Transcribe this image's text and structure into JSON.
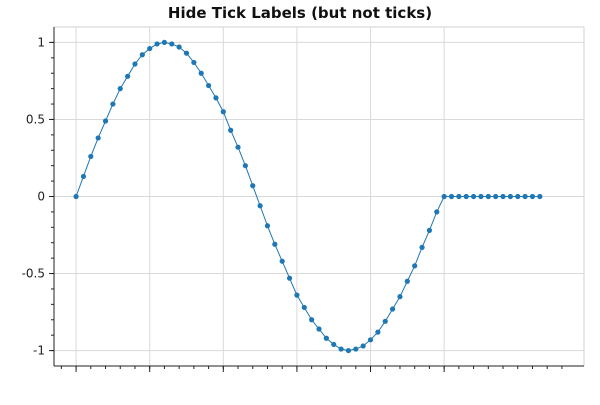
{
  "chart_data": {
    "type": "line",
    "title": "Hide Tick Labels (but not ticks)",
    "xlabel": "",
    "ylabel": "",
    "xlim": [
      -0.3,
      6.9
    ],
    "ylim": [
      -1.1,
      1.1
    ],
    "grid": true,
    "x_tick_labels_visible": false,
    "x_major_ticks": [
      0,
      1,
      2,
      3,
      4,
      5
    ],
    "y_ticks": [
      1,
      0.5,
      0,
      -0.5,
      -1
    ],
    "y_tick_labels": [
      "1",
      "0.5",
      "0",
      "-0.5",
      "-1"
    ],
    "line_color": "#1f77b4",
    "marker": "circle",
    "series": [
      {
        "x": [
          0,
          0.1,
          0.2,
          0.3,
          0.4,
          0.5,
          0.6,
          0.7,
          0.8,
          0.9,
          1.0,
          1.1,
          1.2,
          1.3,
          1.4,
          1.5,
          1.6,
          1.7,
          1.8,
          1.9,
          2.0,
          2.1,
          2.2,
          2.3,
          2.4,
          2.5,
          2.6,
          2.7,
          2.8,
          2.9,
          3.0,
          3.1,
          3.2,
          3.3,
          3.4,
          3.5,
          3.6,
          3.7,
          3.8,
          3.9,
          4.0,
          4.1,
          4.2,
          4.3,
          4.4,
          4.5,
          4.6,
          4.7,
          4.8,
          4.9,
          5.0,
          5.1,
          5.2,
          5.3,
          5.4,
          5.5,
          5.6,
          5.7,
          5.8,
          5.9,
          6.0,
          6.1,
          6.2,
          6.3
        ],
        "y": [
          0.0,
          0.13,
          0.26,
          0.38,
          0.49,
          0.6,
          0.7,
          0.78,
          0.86,
          0.92,
          0.96,
          0.99,
          1.0,
          0.99,
          0.97,
          0.93,
          0.87,
          0.8,
          0.72,
          0.64,
          0.55,
          0.43,
          0.32,
          0.2,
          0.07,
          -0.06,
          -0.19,
          -0.31,
          -0.42,
          -0.53,
          -0.64,
          -0.72,
          -0.8,
          -0.86,
          -0.92,
          -0.96,
          -0.99,
          -1.0,
          -0.99,
          -0.97,
          -0.93,
          -0.88,
          -0.81,
          -0.73,
          -0.65,
          -0.55,
          -0.45,
          -0.33,
          -0.22,
          -0.1,
          0.0,
          0.0,
          0.0,
          0.0,
          0.0,
          0.0,
          0.0,
          0.0,
          0.0,
          0.0,
          0.0,
          0.0,
          0.0,
          0.0
        ]
      }
    ]
  }
}
